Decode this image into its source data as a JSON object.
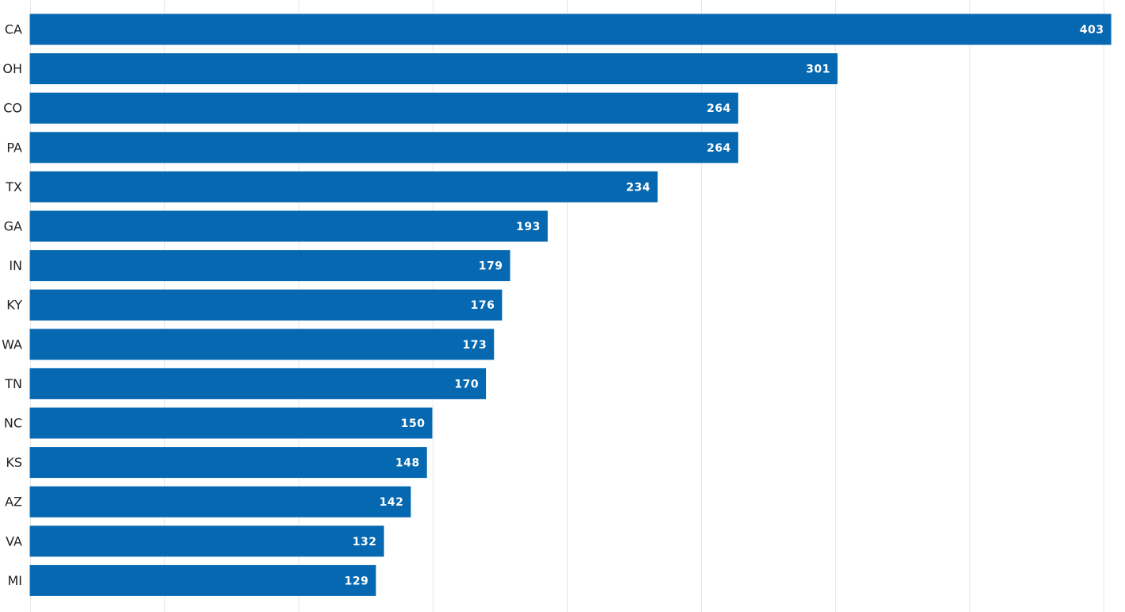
{
  "chart_data": {
    "type": "bar",
    "orientation": "horizontal",
    "categories": [
      "CA",
      "OH",
      "CO",
      "PA",
      "TX",
      "GA",
      "IN",
      "KY",
      "WA",
      "TN",
      "NC",
      "KS",
      "AZ",
      "VA",
      "MI"
    ],
    "values": [
      403,
      301,
      264,
      264,
      234,
      193,
      179,
      176,
      173,
      170,
      150,
      148,
      142,
      132,
      129
    ],
    "data_labels": [
      "403",
      "301",
      "264",
      "264",
      "234",
      "193",
      "179",
      "176",
      "173",
      "170",
      "150",
      "148",
      "142",
      "132",
      "129"
    ],
    "xlim": [
      0,
      400
    ],
    "x_gridlines": [
      0,
      50,
      100,
      150,
      200,
      250,
      300,
      350,
      400
    ],
    "grid": true,
    "legend": "none",
    "bar_color": "#0568b1",
    "label_color": "#ffffff",
    "title": "",
    "xlabel": "",
    "ylabel": ""
  }
}
